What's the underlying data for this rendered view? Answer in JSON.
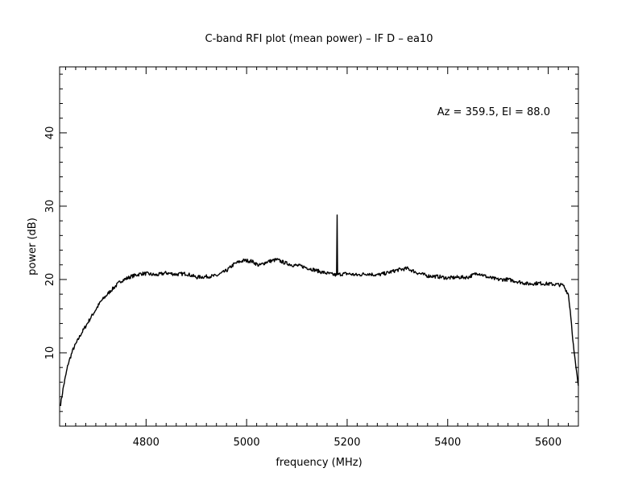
{
  "chart_data": {
    "type": "line",
    "title": "C-band RFI plot (mean power) – IF D – ea10",
    "xlabel": "frequency (MHz)",
    "ylabel": "power (dB)",
    "annotation": "Az = 359.5, El = 88.0",
    "xlim": [
      4628,
      5660
    ],
    "ylim": [
      0,
      49
    ],
    "x_ticks": [
      4800,
      5000,
      5200,
      5400,
      5600
    ],
    "x_tick_labels": [
      "4800",
      "5000",
      "5200",
      "5400",
      "5600"
    ],
    "y_ticks": [
      10,
      20,
      30,
      40
    ],
    "y_tick_labels": [
      "10",
      "20",
      "30",
      "40"
    ],
    "grid": false,
    "color": "#000000",
    "series": [
      {
        "x": [
          4630,
          4636,
          4645,
          4655,
          4670,
          4690,
          4710,
          4730,
          4750,
          4770,
          4790,
          4800,
          4820,
          4840,
          4860,
          4880,
          4900,
          4920,
          4940,
          4960,
          4975,
          4985,
          4995,
          5010,
          5025,
          5040,
          5060,
          5075,
          5090,
          5110,
          5130,
          5150,
          5170,
          5179,
          5180,
          5181,
          5183,
          5200,
          5220,
          5240,
          5260,
          5280,
          5300,
          5320,
          5340,
          5360,
          5380,
          5400,
          5420,
          5440,
          5460,
          5480,
          5500,
          5520,
          5540,
          5560,
          5580,
          5600,
          5620,
          5630,
          5640,
          5645,
          5650,
          5655,
          5660
        ],
        "y": [
          3.0,
          5.5,
          8.5,
          10.5,
          12.5,
          14.8,
          17.0,
          18.5,
          19.8,
          20.4,
          20.8,
          20.8,
          20.6,
          20.9,
          20.7,
          20.8,
          20.3,
          20.4,
          20.5,
          21.2,
          22.1,
          22.4,
          22.6,
          22.5,
          21.9,
          22.4,
          22.7,
          22.3,
          22.0,
          21.8,
          21.4,
          21.0,
          20.7,
          20.6,
          28.8,
          20.6,
          20.7,
          20.8,
          20.6,
          20.8,
          20.6,
          20.9,
          21.3,
          21.5,
          20.9,
          20.5,
          20.4,
          20.2,
          20.3,
          20.3,
          20.9,
          20.3,
          20.0,
          20.0,
          19.7,
          19.4,
          19.5,
          19.4,
          19.3,
          19.2,
          18.0,
          15.0,
          11.0,
          8.0,
          5.5
        ]
      }
    ]
  }
}
